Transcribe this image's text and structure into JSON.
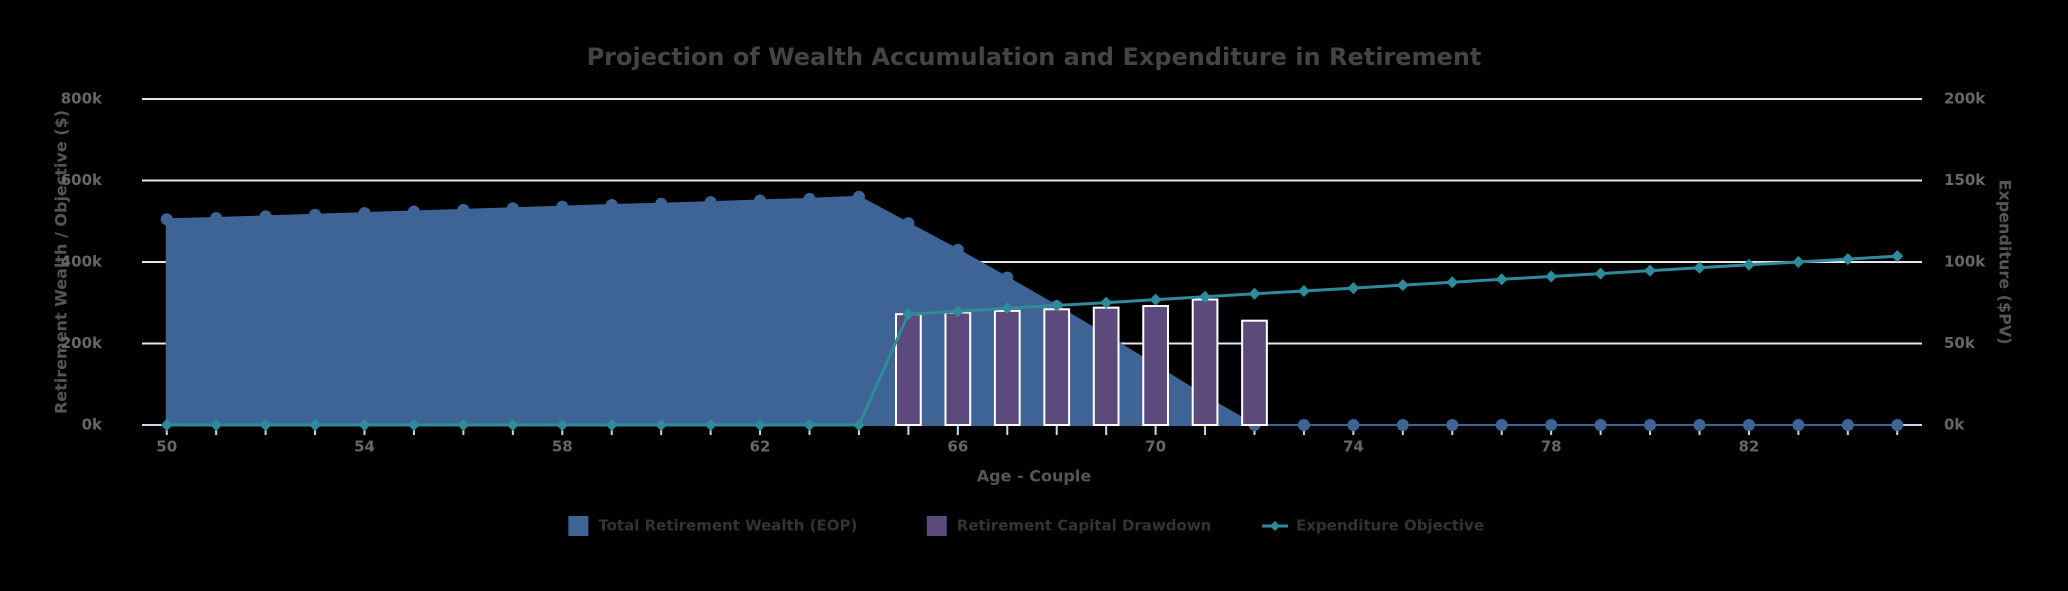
{
  "chart_data": {
    "type": "combo",
    "title": "Projection of Wealth Accumulation and Expenditure in Retirement",
    "x_label": "Age - Couple",
    "y_label": "Retirement Wealth / Objective ($)",
    "y2_label": "Expenditure ($PV)",
    "categories": [
      50,
      null,
      null,
      null,
      54,
      null,
      null,
      null,
      58,
      null,
      null,
      null,
      62,
      null,
      null,
      null,
      66,
      null,
      null,
      null,
      70,
      null,
      null,
      null,
      74,
      null,
      null,
      null,
      78,
      null,
      null,
      null,
      82,
      null,
      null,
      null
    ],
    "ylim": [
      0,
      800000
    ],
    "yticks": [
      {
        "value": 0,
        "label": "0k"
      },
      {
        "value": 200000,
        "label": "200k"
      },
      {
        "value": 400000,
        "label": "400k"
      },
      {
        "value": 600000,
        "label": "600k"
      },
      {
        "value": 800000,
        "label": "800k"
      }
    ],
    "y2lim": [
      0,
      200000
    ],
    "y2ticks": [
      {
        "value": 0,
        "label": "0k"
      },
      {
        "value": 50000,
        "label": "50k"
      },
      {
        "value": 100000,
        "label": "100k"
      },
      {
        "value": 150000,
        "label": "150k"
      },
      {
        "value": 200000,
        "label": "200k"
      }
    ],
    "grid": true,
    "legend": "bottom",
    "series": [
      {
        "name": "Total Retirement Wealth (EOP)",
        "type": "area",
        "color": "#3d6494",
        "values": [
          505000,
          508000,
          512000,
          516000,
          520000,
          524000,
          528000,
          532000,
          536000,
          540000,
          543000,
          547000,
          551000,
          555000,
          560000,
          495000,
          430000,
          362000,
          292000,
          220000,
          146000,
          70000,
          0,
          0,
          0,
          0,
          0,
          0,
          0,
          0,
          0,
          0,
          0,
          0,
          0,
          0
        ]
      },
      {
        "name": "Retirement Capital Drawdown",
        "type": "column",
        "color": "#5c4a7d",
        "axis": "y2",
        "values": [
          null,
          null,
          null,
          null,
          null,
          null,
          null,
          null,
          null,
          null,
          null,
          null,
          null,
          null,
          null,
          68000,
          69000,
          70000,
          71000,
          72000,
          73000,
          77000,
          64000,
          null,
          null,
          null,
          null,
          null,
          null,
          null,
          null,
          null,
          null,
          null,
          null,
          null
        ]
      },
      {
        "name": "Expenditure Objective",
        "type": "line",
        "color": "#2e8b99",
        "axis": "y2",
        "values": [
          0,
          0,
          0,
          0,
          0,
          0,
          0,
          0,
          0,
          0,
          0,
          0,
          0,
          0,
          0,
          68000,
          69800,
          71600,
          73300,
          75100,
          76900,
          78700,
          80500,
          82200,
          84000,
          85800,
          87600,
          89400,
          91100,
          92900,
          94700,
          96500,
          98300,
          100000,
          101800,
          103600
        ]
      }
    ]
  }
}
